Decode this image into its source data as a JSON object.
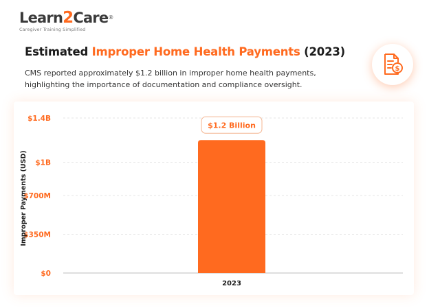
{
  "logo": {
    "brand_prefix": "Learn",
    "brand_number": "2",
    "brand_suffix": "Care",
    "registered": "®",
    "tagline": "Caregiver Training Simplified"
  },
  "header": {
    "title_pre": "Estimated ",
    "title_highlight": "Improper Home Health Payments",
    "title_post": " (2023)",
    "subtitle": "CMS reported approximately $1.2 billion in improper home health payments, highlighting the importance of documentation and compliance oversight."
  },
  "icons": {
    "document_icon": "document-dollar-icon"
  },
  "colors": {
    "accent": "#ff6a1f",
    "text": "#1c1c1c",
    "grid": "#e4e4e4"
  },
  "chart_data": {
    "type": "bar",
    "categories": [
      "2023"
    ],
    "values": [
      1.2
    ],
    "unit": "billion USD",
    "ylabel": "Improper Payments (USD)",
    "xlabel": "",
    "ylim": [
      0,
      1.4
    ],
    "yticks": [
      0,
      0.35,
      0.7,
      1.0,
      1.4
    ],
    "ytick_labels": [
      "$0",
      "$350M",
      "$700M",
      "$1B",
      "$1.4B"
    ],
    "data_labels": [
      "$1.2 Billion"
    ],
    "grid": true,
    "bar_color": "#ff6a1f"
  }
}
